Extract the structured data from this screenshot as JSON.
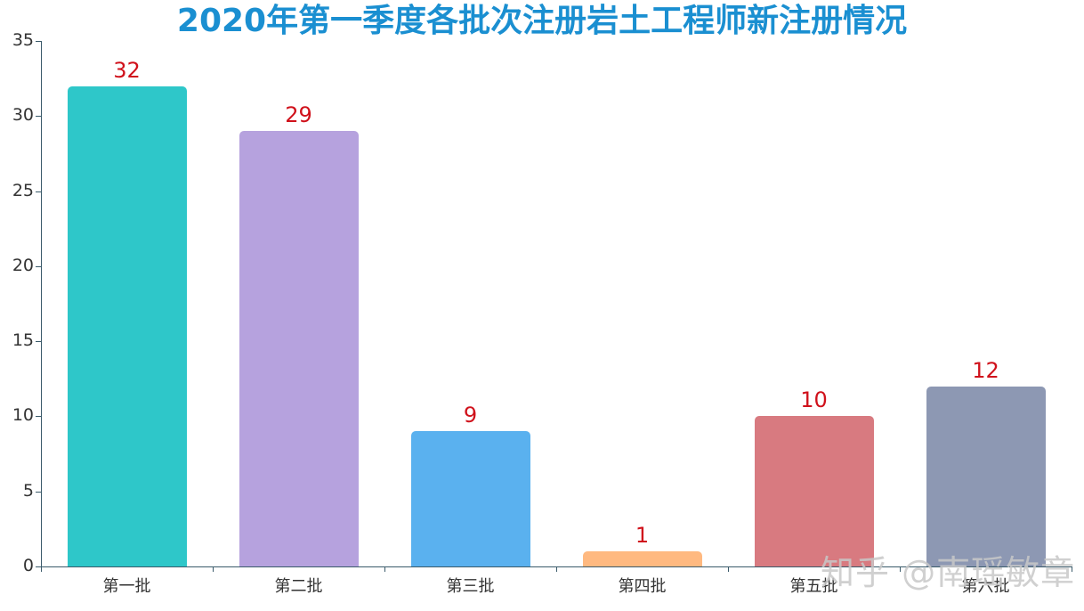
{
  "chart_data": {
    "type": "bar",
    "title": "2020年第一季度各批次注册岩土工程师新注册情况",
    "categories": [
      "第一批",
      "第二批",
      "第三批",
      "第四批",
      "第五批",
      "第六批"
    ],
    "values": [
      32,
      29,
      9,
      1,
      10,
      12
    ],
    "colors": [
      "#2ec7c9",
      "#b6a2de",
      "#5ab1ef",
      "#ffb980",
      "#d87a80",
      "#8d98b3"
    ],
    "xlabel": "",
    "ylabel": "",
    "ylim": [
      0,
      35
    ],
    "yticks": [
      0,
      5,
      10,
      15,
      20,
      25,
      30,
      35
    ],
    "grid": false,
    "legend": null,
    "data_label_color": "#d0111b"
  },
  "watermark": "知乎 @南瑶敏章"
}
